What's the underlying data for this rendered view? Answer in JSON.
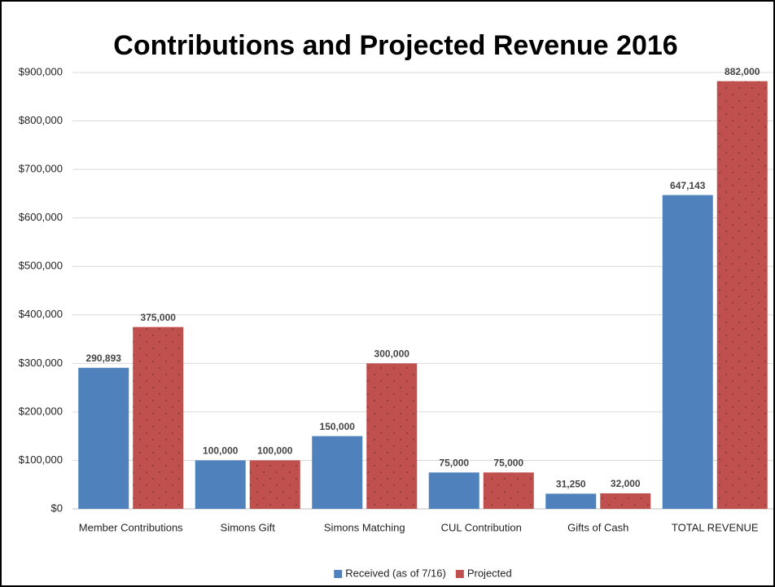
{
  "chart_data": {
    "type": "bar",
    "title": "Contributions and Projected Revenue 2016",
    "categories": [
      "Member Contributions",
      "Simons Gift",
      "Simons Matching",
      "CUL Contribution",
      "Gifts of Cash",
      "TOTAL REVENUE"
    ],
    "series": [
      {
        "name": "Received (as of 7/16)",
        "color": "#4f81bd",
        "values": [
          290893,
          100000,
          150000,
          75000,
          31250,
          647143
        ],
        "value_labels": [
          "290,893",
          "100,000",
          "150,000",
          "75,000",
          "31,250",
          "647,143"
        ]
      },
      {
        "name": "Projected",
        "color": "#c0504d",
        "pattern": "dots",
        "values": [
          375000,
          100000,
          300000,
          75000,
          32000,
          882000
        ],
        "value_labels": [
          "375,000",
          "100,000",
          "300,000",
          "75,000",
          "32,000",
          "882,000"
        ]
      }
    ],
    "ylim": [
      0,
      900000
    ],
    "yticks": [
      {
        "value": 0,
        "label": "$0"
      },
      {
        "value": 100000,
        "label": "$100,000"
      },
      {
        "value": 200000,
        "label": "$200,000"
      },
      {
        "value": 300000,
        "label": "$300,000"
      },
      {
        "value": 400000,
        "label": "$400,000"
      },
      {
        "value": 500000,
        "label": "$500,000"
      },
      {
        "value": 600000,
        "label": "$600,000"
      },
      {
        "value": 700000,
        "label": "$700,000"
      },
      {
        "value": 800000,
        "label": "$800,000"
      },
      {
        "value": 900000,
        "label": "$900,000"
      }
    ],
    "grid": true,
    "legend": "bottom"
  }
}
